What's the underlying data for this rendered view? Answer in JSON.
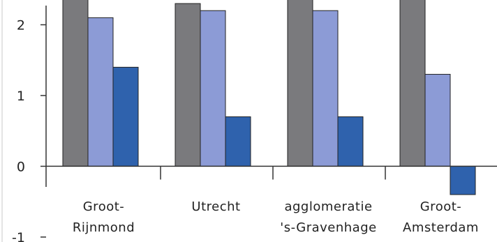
{
  "chart_data": {
    "type": "bar",
    "title": "",
    "xlabel": "",
    "ylabel": "",
    "categories": [
      [
        "Groot-",
        "Rijnmond"
      ],
      [
        "Utrecht"
      ],
      [
        "agglomeratie",
        "'s-Gravenhage"
      ],
      [
        "Groot-",
        "Amsterdam"
      ]
    ],
    "series": [
      {
        "color": "#7a7a7d",
        "values": [
          2.5,
          2.3,
          2.5,
          2.5
        ]
      },
      {
        "color": "#8c9bd6",
        "values": [
          2.1,
          2.2,
          2.2,
          1.3
        ]
      },
      {
        "color": "#2f62ad",
        "values": [
          1.4,
          0.7,
          0.7,
          -0.4
        ]
      }
    ],
    "y_ticks": [
      -1,
      0,
      1,
      2
    ],
    "ylim": [
      -1.07,
      2.35
    ],
    "grid": false,
    "legend": "none"
  }
}
